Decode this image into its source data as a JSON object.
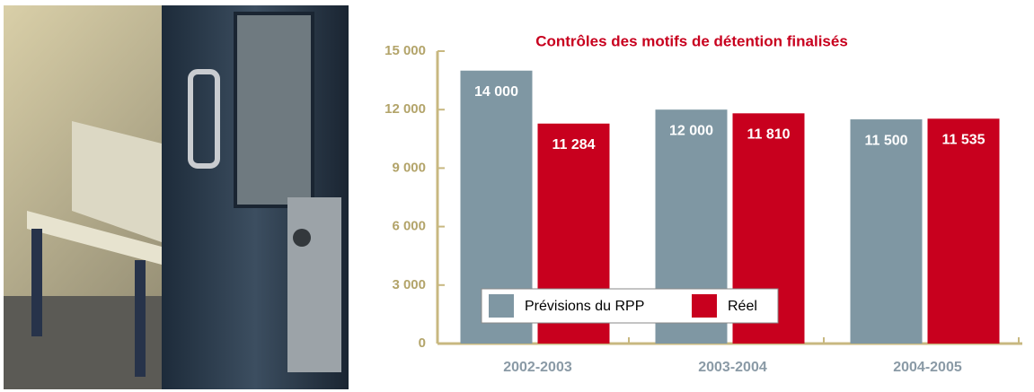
{
  "chart_data": {
    "type": "bar",
    "title": "Contrôles des motifs de détention finalisés",
    "categories": [
      "2002-2003",
      "2003-2004",
      "2004-2005"
    ],
    "series": [
      {
        "name": "Prévisions du RPP",
        "color": "#7f97a3",
        "values": [
          14000,
          12000,
          11500
        ],
        "value_labels": [
          "14 000",
          "12 000",
          "11 500"
        ]
      },
      {
        "name": "Réel",
        "color": "#c8001e",
        "values": [
          11284,
          11810,
          11535
        ],
        "value_labels": [
          "11 284",
          "11 810",
          "11 535"
        ]
      }
    ],
    "ylim": [
      0,
      15000
    ],
    "yticks": [
      0,
      {
        "value": 3000,
        "label": "3 000"
      },
      {
        "value": 6000,
        "label": "6 000"
      },
      {
        "value": 9000,
        "label": "9 000"
      },
      {
        "value": 12000,
        "label": "12 000"
      },
      {
        "value": 15000,
        "label": "15 000"
      }
    ]
  }
}
